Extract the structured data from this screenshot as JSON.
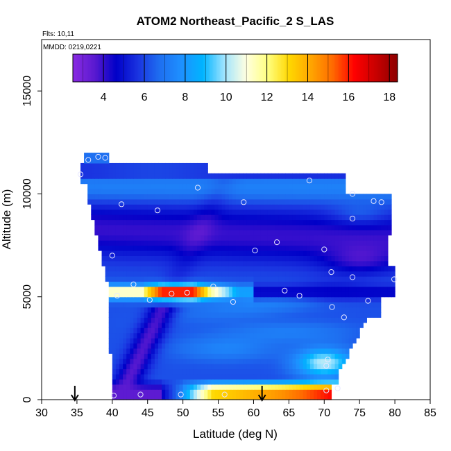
{
  "chart_data": {
    "type": "heatmap",
    "title": "ATOM2 Northeast_Pacific_2 S_LAS",
    "annotations": {
      "flights": "Flts: 10,11",
      "dates": "MMDD: 0219,0221"
    },
    "xlabel": "Latitude (deg N)",
    "ylabel": "Altitude (m)",
    "xlim": [
      30,
      85
    ],
    "ylim": [
      0,
      17500
    ],
    "x_ticks": [
      "30",
      "35",
      "40",
      "45",
      "50",
      "55",
      "60",
      "65",
      "70",
      "75",
      "80",
      "85"
    ],
    "y_ticks": [
      "0",
      "5000",
      "10000",
      "15000"
    ],
    "colorbar": {
      "range": [
        2.5,
        18.4
      ],
      "tick_labels": [
        "4",
        "6",
        "8",
        "10",
        "12",
        "14",
        "16",
        "18"
      ],
      "colors": [
        "#8a2be2",
        "#5a1ad0",
        "#0000c8",
        "#1a33e0",
        "#1e6ef0",
        "#1e90ff",
        "#00b4ff",
        "#a0e4ff",
        "#ffffe0",
        "#ffff80",
        "#ffd700",
        "#ffa500",
        "#ff6a00",
        "#ff0000",
        "#c80000",
        "#8b0000"
      ]
    },
    "grid": false,
    "arrows_at_latitude": [
      34.7,
      61.2
    ],
    "observation_points": [
      {
        "x": 36.6,
        "y": 11650
      },
      {
        "x": 38,
        "y": 11800
      },
      {
        "x": 39,
        "y": 11750
      },
      {
        "x": 35.5,
        "y": 10950
      },
      {
        "x": 52.1,
        "y": 10300
      },
      {
        "x": 67.9,
        "y": 10650
      },
      {
        "x": 74,
        "y": 10000
      },
      {
        "x": 77,
        "y": 9650
      },
      {
        "x": 78.1,
        "y": 9600
      },
      {
        "x": 41.3,
        "y": 9500
      },
      {
        "x": 46.4,
        "y": 9200
      },
      {
        "x": 58.6,
        "y": 9600
      },
      {
        "x": 74,
        "y": 8800
      },
      {
        "x": 63.3,
        "y": 7650
      },
      {
        "x": 60.2,
        "y": 7250
      },
      {
        "x": 70,
        "y": 7300
      },
      {
        "x": 40,
        "y": 7000
      },
      {
        "x": 71,
        "y": 6200
      },
      {
        "x": 74,
        "y": 5950
      },
      {
        "x": 79.9,
        "y": 5850
      },
      {
        "x": 43,
        "y": 5600
      },
      {
        "x": 64.4,
        "y": 5300
      },
      {
        "x": 66.5,
        "y": 5050
      },
      {
        "x": 40.7,
        "y": 5050
      },
      {
        "x": 45.3,
        "y": 4850
      },
      {
        "x": 48.4,
        "y": 5150
      },
      {
        "x": 50.6,
        "y": 5200
      },
      {
        "x": 54.3,
        "y": 5500
      },
      {
        "x": 57.1,
        "y": 4750
      },
      {
        "x": 71.1,
        "y": 4500
      },
      {
        "x": 76.2,
        "y": 4800
      },
      {
        "x": 72.8,
        "y": 4000
      },
      {
        "x": 70.5,
        "y": 1950
      },
      {
        "x": 70.3,
        "y": 1650
      },
      {
        "x": 40.2,
        "y": 200
      },
      {
        "x": 44,
        "y": 250
      },
      {
        "x": 49.7,
        "y": 250
      },
      {
        "x": 55.9,
        "y": 250
      },
      {
        "x": 70.3,
        "y": 450
      },
      {
        "x": 71.9,
        "y": 550
      }
    ]
  }
}
